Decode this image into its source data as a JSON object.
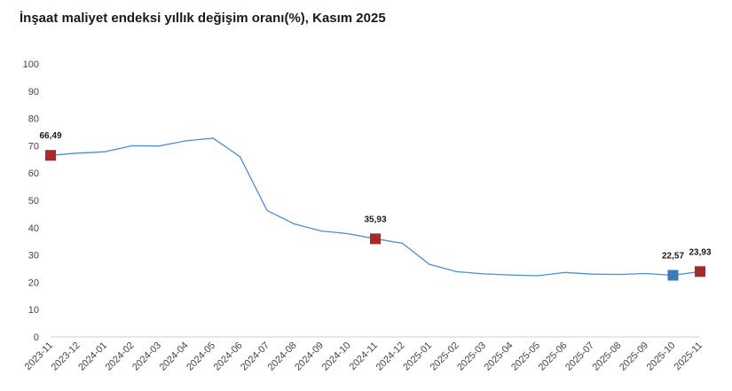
{
  "chart_data": {
    "type": "line",
    "title": "İnşaat maliyet endeksi yıllık değişim oranı(%), Kasım 2025",
    "xlabel": "",
    "ylabel": "",
    "ylim": [
      0,
      100
    ],
    "yticks": [
      0,
      10,
      20,
      30,
      40,
      50,
      60,
      70,
      80,
      90,
      100
    ],
    "grid": false,
    "categories": [
      "2023-11",
      "2023-12",
      "2024-01",
      "2024-02",
      "2024-03",
      "2024-04",
      "2024-05",
      "2024-06",
      "2024-07",
      "2024-08",
      "2024-09",
      "2024-10",
      "2024-11",
      "2024-12",
      "2025-01",
      "2025-02",
      "2025-03",
      "2025-04",
      "2025-05",
      "2025-06",
      "2025-07",
      "2025-08",
      "2025-09",
      "2025-10",
      "2025-11"
    ],
    "series": [
      {
        "values": [
          66.49,
          67.3,
          67.8,
          70.0,
          69.9,
          71.8,
          72.8,
          66.0,
          46.3,
          41.4,
          38.8,
          37.8,
          35.93,
          34.3,
          26.6,
          23.9,
          23.1,
          22.7,
          22.4,
          23.6,
          23.0,
          22.9,
          23.2,
          22.57,
          23.93
        ],
        "color": "#4a8fd4"
      }
    ],
    "highlights": [
      {
        "index": 0,
        "label": "66,49",
        "color": "#a52a2a"
      },
      {
        "index": 12,
        "label": "35,93",
        "color": "#a52a2a"
      },
      {
        "index": 23,
        "label": "22,57",
        "color": "#3d7ab8"
      },
      {
        "index": 24,
        "label": "23,93",
        "color": "#a52a2a"
      }
    ]
  }
}
